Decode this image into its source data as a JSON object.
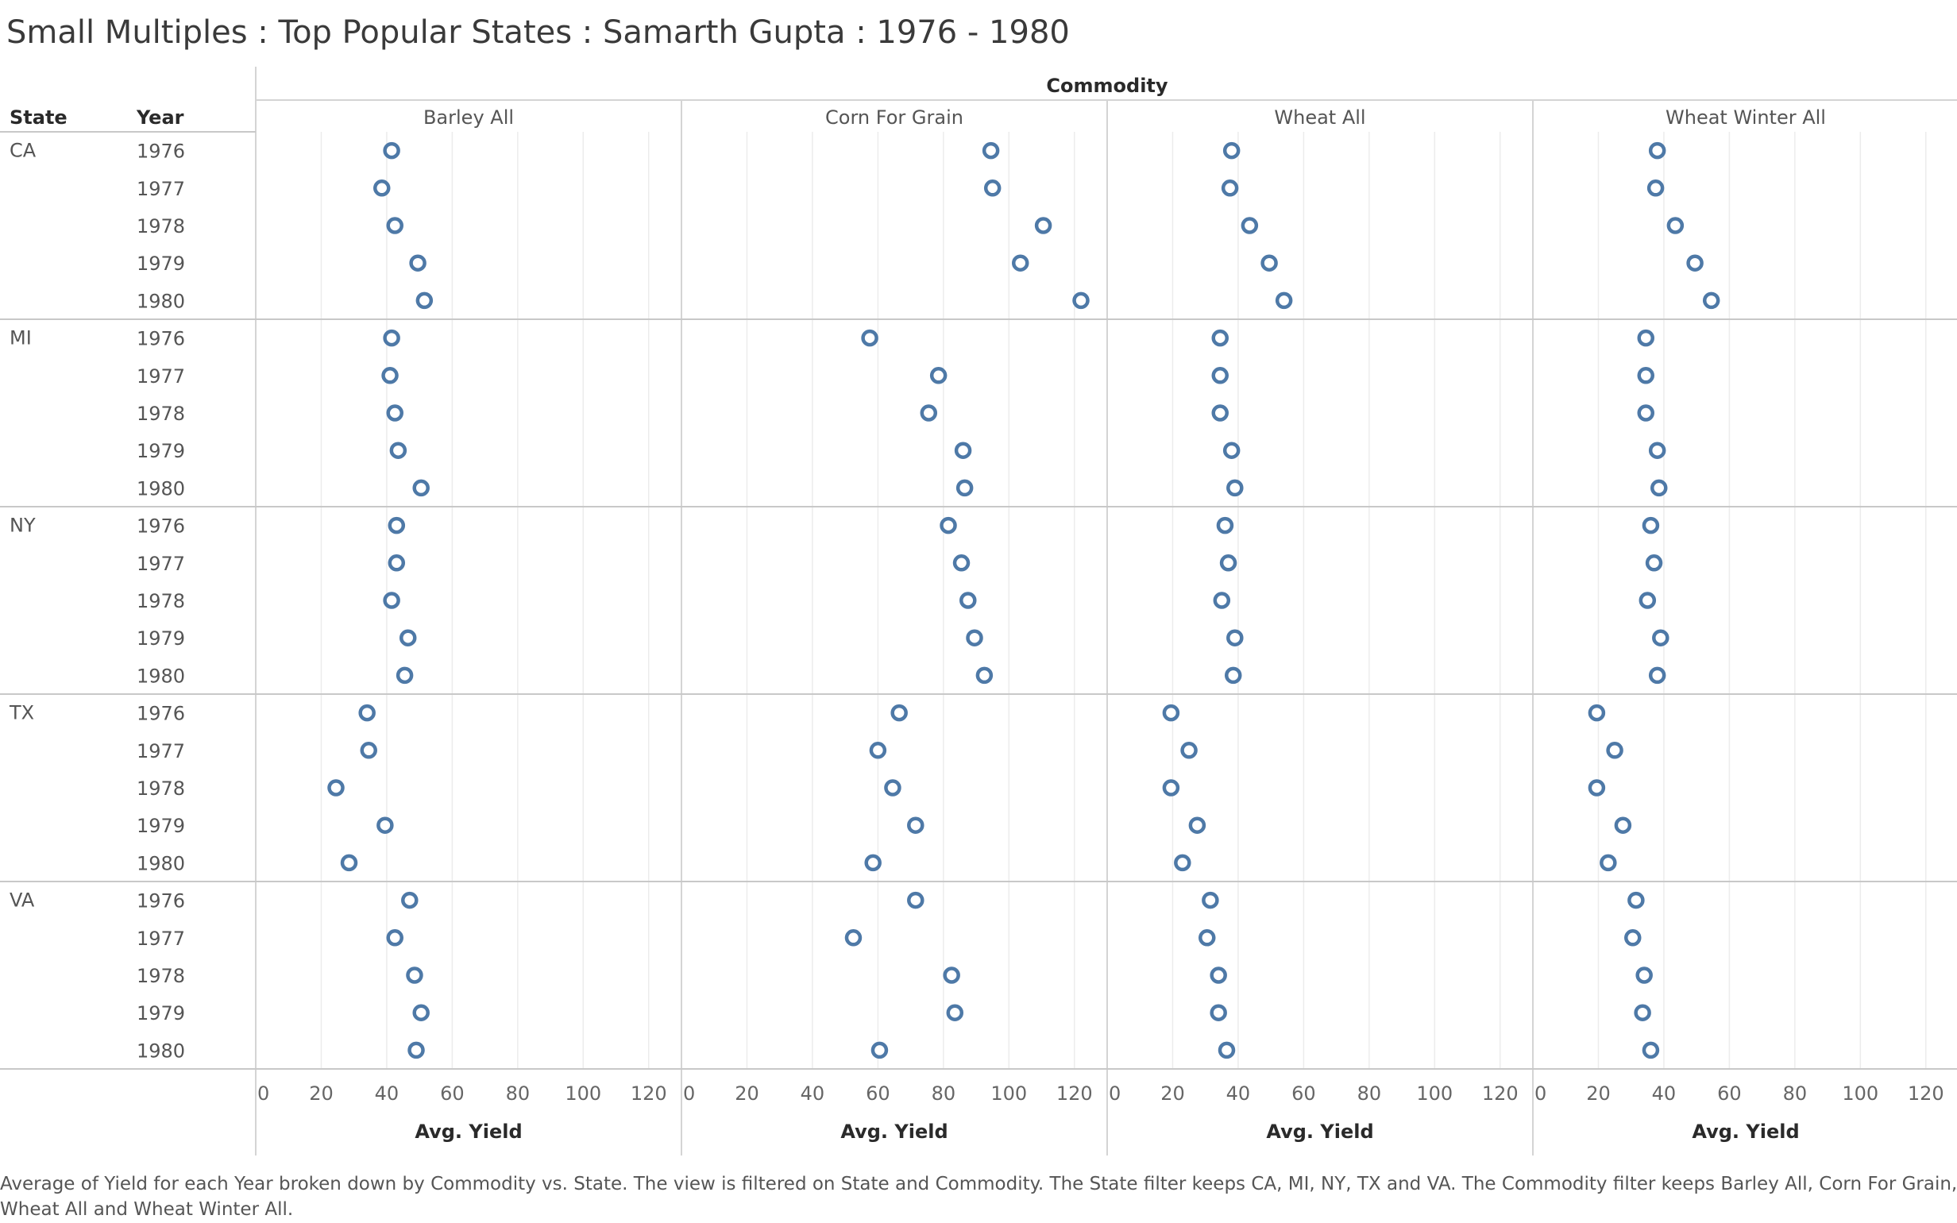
{
  "title": "Small Multiples : Top Popular States : Samarth Gupta : 1976 - 1980",
  "caption_lines": [
    "Average of Yield for each Year broken down by Commodity vs. State. The view is filtered on State and Commodity. The State filter keeps CA, MI, NY, TX and VA. The Commodity filter keeps Barley  All, Corn  For Grain,",
    "Wheat  All and Wheat  Winter All."
  ],
  "chart_data": {
    "type": "scatter",
    "column_header": "Commodity",
    "row_headers": [
      "State",
      "Year"
    ],
    "commodities": [
      "Barley  All",
      "Corn  For Grain",
      "Wheat  All",
      "Wheat  Winter All"
    ],
    "states": [
      "CA",
      "MI",
      "NY",
      "TX",
      "VA"
    ],
    "years": [
      "1976",
      "1977",
      "1978",
      "1979",
      "1980"
    ],
    "xlabel": "Avg. Yield",
    "xlim": [
      0,
      130
    ],
    "xticks": [
      0,
      20,
      40,
      60,
      80,
      100,
      120
    ],
    "grid": true,
    "mark_color": "#4e79a7",
    "values": {
      "CA": {
        "Barley  All": [
          41.5,
          38.5,
          42.5,
          49.5,
          51.5
        ],
        "Corn  For Grain": [
          94.5,
          95.0,
          110.5,
          103.5,
          122.0
        ],
        "Wheat  All": [
          38.0,
          37.5,
          43.5,
          49.5,
          54.0
        ],
        "Wheat  Winter All": [
          38.0,
          37.5,
          43.5,
          49.5,
          54.5
        ]
      },
      "MI": {
        "Barley  All": [
          41.5,
          41.0,
          42.5,
          43.5,
          50.5
        ],
        "Corn  For Grain": [
          57.5,
          78.5,
          75.5,
          86.0,
          86.5
        ],
        "Wheat  All": [
          34.5,
          34.5,
          34.5,
          38.0,
          39.0
        ],
        "Wheat  Winter All": [
          34.5,
          34.5,
          34.5,
          38.0,
          38.5
        ]
      },
      "NY": {
        "Barley  All": [
          43.0,
          43.0,
          41.5,
          46.5,
          45.5
        ],
        "Corn  For Grain": [
          81.5,
          85.5,
          87.5,
          89.5,
          92.5
        ],
        "Wheat  All": [
          36.0,
          37.0,
          35.0,
          39.0,
          38.5
        ],
        "Wheat  Winter All": [
          36.0,
          37.0,
          35.0,
          39.0,
          38.0
        ]
      },
      "TX": {
        "Barley  All": [
          34.0,
          34.5,
          24.5,
          39.5,
          28.5
        ],
        "Corn  For Grain": [
          66.5,
          60.0,
          64.5,
          71.5,
          58.5
        ],
        "Wheat  All": [
          19.5,
          25.0,
          19.5,
          27.5,
          23.0
        ],
        "Wheat  Winter All": [
          19.5,
          25.0,
          19.5,
          27.5,
          23.0
        ]
      },
      "VA": {
        "Barley  All": [
          47.0,
          42.5,
          48.5,
          50.5,
          49.0
        ],
        "Corn  For Grain": [
          71.5,
          52.5,
          82.5,
          83.5,
          60.5
        ],
        "Wheat  All": [
          31.5,
          30.5,
          34.0,
          34.0,
          36.5
        ],
        "Wheat  Winter All": [
          31.5,
          30.5,
          34.0,
          33.5,
          36.0
        ]
      }
    }
  }
}
